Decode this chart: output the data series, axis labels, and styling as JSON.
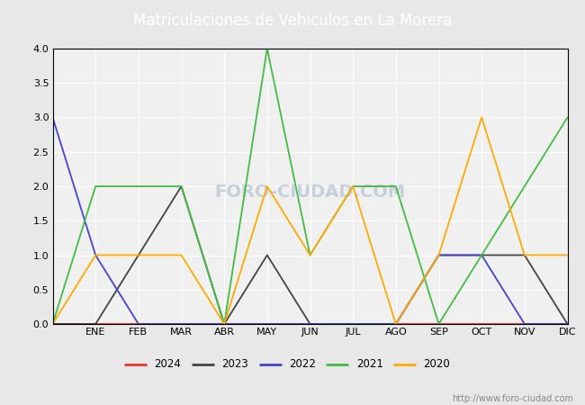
{
  "title": "Matriculaciones de Vehiculos en La Morera",
  "months": [
    "",
    "ENE",
    "FEB",
    "MAR",
    "ABR",
    "MAY",
    "JUN",
    "JUL",
    "AGO",
    "SEP",
    "OCT",
    "NOV",
    "DIC"
  ],
  "series": {
    "2024": {
      "color": "#ee3333",
      "values": [
        0,
        0,
        0,
        0,
        0,
        0,
        0,
        0,
        0,
        0,
        0,
        0,
        0
      ]
    },
    "2023": {
      "color": "#444444",
      "values": [
        0,
        0,
        1,
        2,
        0,
        1,
        0,
        0,
        0,
        1,
        1,
        1,
        0
      ]
    },
    "2022": {
      "color": "#4444cc",
      "values": [
        3,
        1,
        0,
        0,
        0,
        0,
        0,
        0,
        0,
        1,
        1,
        0,
        0
      ]
    },
    "2021": {
      "color": "#44bb44",
      "values": [
        0,
        2,
        2,
        2,
        0,
        4,
        1,
        2,
        2,
        0,
        1,
        2,
        3
      ]
    },
    "2020": {
      "color": "#ffaa00",
      "values": [
        0,
        1,
        1,
        1,
        0,
        2,
        1,
        2,
        0,
        1,
        3,
        1,
        1
      ]
    }
  },
  "ylim": [
    0,
    4.0
  ],
  "yticks": [
    0.0,
    0.5,
    1.0,
    1.5,
    2.0,
    2.5,
    3.0,
    3.5,
    4.0
  ],
  "title_bg_color": "#5599dd",
  "title_text_color": "#ffffff",
  "plot_bg_color": "#e8e8e8",
  "inner_bg_color": "#f0f0f0",
  "grid_color": "#ffffff",
  "border_color": "#000000",
  "watermark_text": "http://www.foro-ciudad.com",
  "watermark_color": "#aabbcc",
  "legend_years": [
    "2024",
    "2023",
    "2022",
    "2021",
    "2020"
  ]
}
